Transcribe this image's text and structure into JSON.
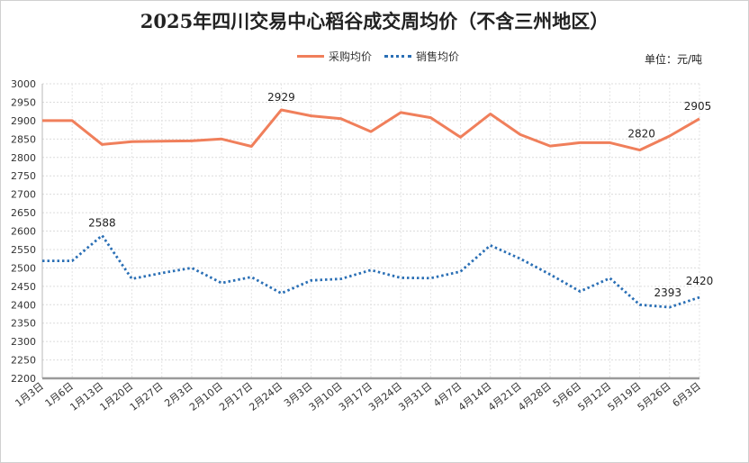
{
  "chart_data": {
    "type": "line",
    "title": "2025年四川交易中心稻谷成交周均价（不含三州地区）",
    "unit": "单位：元/吨",
    "categories": [
      "1月3日",
      "1月6日",
      "1月13日",
      "1月20日",
      "1月27日",
      "2月3日",
      "2月10日",
      "2月17日",
      "2月24日",
      "3月3日",
      "3月10日",
      "3月17日",
      "3月24日",
      "3月31日",
      "4月7日",
      "4月14日",
      "4月21日",
      "4月28日",
      "5月6日",
      "5月12日",
      "5月19日",
      "5月26日",
      "6月3日"
    ],
    "y_ticks": [
      "3000",
      "2950",
      "2900",
      "2850",
      "2800",
      "2750",
      "2700",
      "2650",
      "2600",
      "2550",
      "2500",
      "2450",
      "2400",
      "2350",
      "2300",
      "2250",
      "2200"
    ],
    "ylim": [
      2200,
      3000
    ],
    "grid": true,
    "legend_position": "top",
    "series": [
      {
        "name": "采购均价",
        "color": "#f07f5b",
        "style": "solid",
        "values": [
          2900,
          2900,
          2835,
          2843,
          2844,
          2845,
          2850,
          2830,
          2929,
          2913,
          2905,
          2870,
          2922,
          2908,
          2855,
          2918,
          2862,
          2831,
          2840,
          2840,
          2820,
          2858,
          2905
        ],
        "labels": {
          "8": "2929",
          "20": "2820",
          "22": "2905"
        }
      },
      {
        "name": "销售均价",
        "color": "#2a6fb5",
        "style": "dotted",
        "values": [
          2519,
          2519,
          2588,
          2470,
          2486,
          2500,
          2459,
          2475,
          2431,
          2466,
          2470,
          2494,
          2473,
          2472,
          2490,
          2561,
          2525,
          2482,
          2436,
          2472,
          2400,
          2393,
          2420
        ],
        "labels": {
          "2": "2588",
          "21": "2393",
          "22": "2420"
        }
      }
    ]
  }
}
